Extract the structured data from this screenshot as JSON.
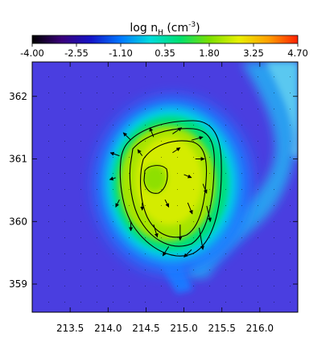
{
  "chart_data": {
    "type": "heatmap",
    "colorbar": {
      "label": "log n",
      "label_subscript": "H",
      "label_units": "(cm",
      "label_units_exp": "-3",
      "label_units_close": ")",
      "range": [
        -4.0,
        4.7
      ],
      "tick_labels": [
        "-4.00",
        "-2.55",
        "-1.10",
        "0.35",
        "1.80",
        "3.25",
        "4.70"
      ],
      "tick_values": [
        -4.0,
        -2.55,
        -1.1,
        0.35,
        1.8,
        3.25,
        4.7
      ],
      "colormap": [
        "#000000",
        "#3a007a",
        "#1414c8",
        "#0078ff",
        "#00dcdc",
        "#00e070",
        "#7ae000",
        "#e8f000",
        "#ffa000",
        "#ff2000"
      ]
    },
    "xlim": [
      213.0,
      216.5
    ],
    "ylim": [
      358.55,
      362.55
    ],
    "x_ticks": [
      213.5,
      214.0,
      214.5,
      215.0,
      215.5,
      216.0
    ],
    "x_tick_labels": [
      "213.5",
      "214.0",
      "214.5",
      "215.0",
      "215.5",
      "216.0"
    ],
    "y_ticks": [
      359,
      360,
      361,
      362
    ],
    "y_tick_labels": [
      "359",
      "360",
      "361",
      "362"
    ],
    "xlabel": "",
    "ylabel": "",
    "background_level": -1.5,
    "blob": {
      "center": [
        214.75,
        360.5
      ],
      "peak_level": 1.75,
      "contour_count": 3
    },
    "streak": {
      "description_level": -0.6
    },
    "vectors": [
      {
        "x": 214.3,
        "y": 361.3,
        "dx": -0.1,
        "dy": 0.12
      },
      {
        "x": 214.6,
        "y": 361.35,
        "dx": -0.05,
        "dy": 0.15
      },
      {
        "x": 214.85,
        "y": 361.4,
        "dx": 0.12,
        "dy": 0.1
      },
      {
        "x": 215.1,
        "y": 361.3,
        "dx": 0.15,
        "dy": 0.05
      },
      {
        "x": 214.15,
        "y": 361.05,
        "dx": -0.12,
        "dy": 0.05
      },
      {
        "x": 214.45,
        "y": 361.05,
        "dx": -0.06,
        "dy": 0.1
      },
      {
        "x": 214.85,
        "y": 361.1,
        "dx": 0.1,
        "dy": 0.08
      },
      {
        "x": 215.15,
        "y": 361.0,
        "dx": 0.12,
        "dy": 0.0
      },
      {
        "x": 214.1,
        "y": 360.7,
        "dx": -0.08,
        "dy": -0.03
      },
      {
        "x": 215.0,
        "y": 360.75,
        "dx": 0.1,
        "dy": -0.05
      },
      {
        "x": 215.25,
        "y": 360.6,
        "dx": 0.05,
        "dy": -0.15
      },
      {
        "x": 214.15,
        "y": 360.35,
        "dx": -0.05,
        "dy": -0.12
      },
      {
        "x": 214.45,
        "y": 360.3,
        "dx": 0.0,
        "dy": -0.12
      },
      {
        "x": 214.75,
        "y": 360.35,
        "dx": 0.05,
        "dy": -0.12
      },
      {
        "x": 215.05,
        "y": 360.3,
        "dx": 0.06,
        "dy": -0.18
      },
      {
        "x": 215.3,
        "y": 360.25,
        "dx": 0.05,
        "dy": -0.25
      },
      {
        "x": 214.3,
        "y": 360.0,
        "dx": 0.0,
        "dy": -0.15
      },
      {
        "x": 214.6,
        "y": 359.95,
        "dx": 0.05,
        "dy": -0.2
      },
      {
        "x": 214.95,
        "y": 359.95,
        "dx": 0.0,
        "dy": -0.25
      },
      {
        "x": 215.2,
        "y": 359.9,
        "dx": 0.05,
        "dy": -0.35
      },
      {
        "x": 214.8,
        "y": 359.6,
        "dx": -0.08,
        "dy": -0.15
      },
      {
        "x": 215.1,
        "y": 359.55,
        "dx": -0.1,
        "dy": -0.12
      }
    ]
  }
}
